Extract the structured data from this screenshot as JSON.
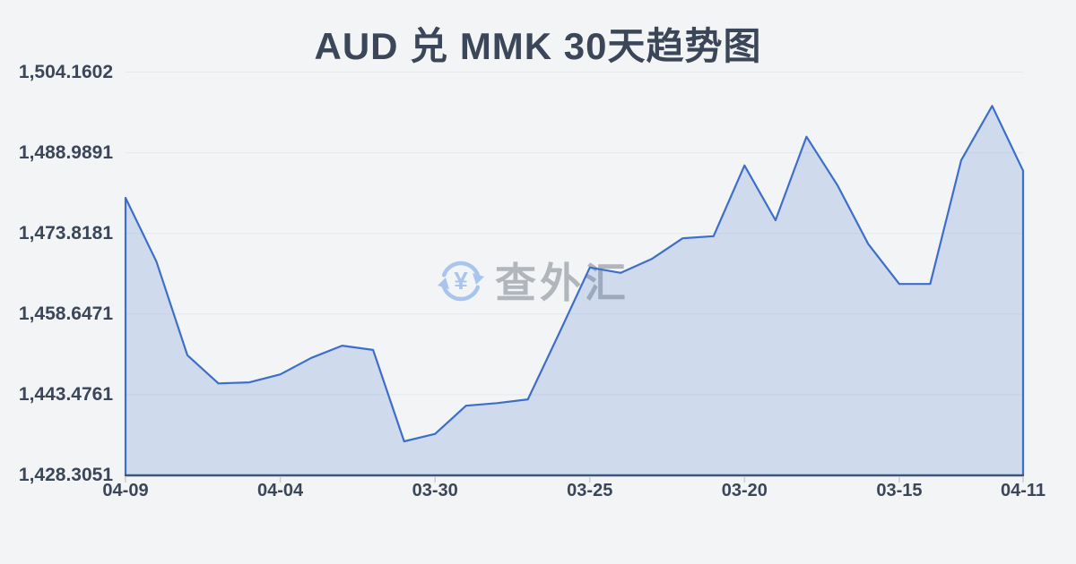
{
  "page": {
    "background": "#f3f4f6"
  },
  "title": "AUD 兑 MMK 30天趋势图",
  "watermark": {
    "icon": "currency-exchange-icon",
    "icon_symbol": "¥",
    "icon_color": "#a9c4ee",
    "text": "查外汇",
    "text_color": "#b1b5bc"
  },
  "chart_data": {
    "type": "area",
    "title": "AUD 兑 MMK 30天趋势图",
    "xlabel": "",
    "ylabel": "",
    "x_tick_labels": [
      "04-09",
      "04-04",
      "03-30",
      "03-25",
      "03-20",
      "03-15",
      "04-11"
    ],
    "x_tick_indices": [
      0,
      5,
      10,
      15,
      20,
      25,
      29
    ],
    "y_tick_labels": [
      "1,504.1602",
      "1,488.9891",
      "1,473.8181",
      "1,458.6471",
      "1,443.4761",
      "1,428.3051"
    ],
    "y_tick_values": [
      1504.1602,
      1488.9891,
      1473.8181,
      1458.6471,
      1443.4761,
      1428.3051
    ],
    "ylim": [
      1428.3051,
      1504.1602
    ],
    "grid": true,
    "legend": "none",
    "series": [
      {
        "name": "AUD/MMK",
        "values": [
          1480.5,
          1468.5,
          1450.9,
          1445.6,
          1445.8,
          1447.3,
          1450.4,
          1452.7,
          1451.9,
          1434.7,
          1436.1,
          1441.4,
          1441.9,
          1442.6,
          1454.9,
          1467.4,
          1466.4,
          1469.0,
          1472.9,
          1473.3,
          1486.6,
          1476.3,
          1492.0,
          1482.9,
          1471.8,
          1464.3,
          1464.3,
          1487.6,
          1497.8,
          1485.6
        ]
      }
    ],
    "colors": {
      "line": "#3d6fc9",
      "fill": "rgba(86,128,205,0.22)",
      "axis": "#3a567c",
      "grid": "#e5e8ec",
      "tick": "#c9cdd4",
      "label": "#3b4759"
    }
  }
}
